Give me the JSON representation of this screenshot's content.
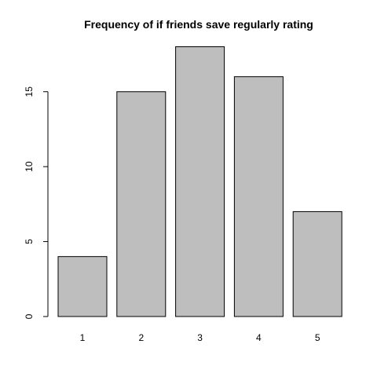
{
  "chart_data": {
    "type": "bar",
    "title": "Frequency of if friends save regularly rating",
    "xlabel": "",
    "ylabel": "",
    "categories": [
      "1",
      "2",
      "3",
      "4",
      "5"
    ],
    "values": [
      4,
      15,
      18,
      16,
      7
    ],
    "ylim": [
      0,
      18
    ],
    "y_ticks": [
      0,
      5,
      10,
      15
    ],
    "y_tick_labels": [
      "0",
      "5",
      "10",
      "15"
    ],
    "bar_color": "#bebebe",
    "grid": false,
    "legend": "none"
  }
}
